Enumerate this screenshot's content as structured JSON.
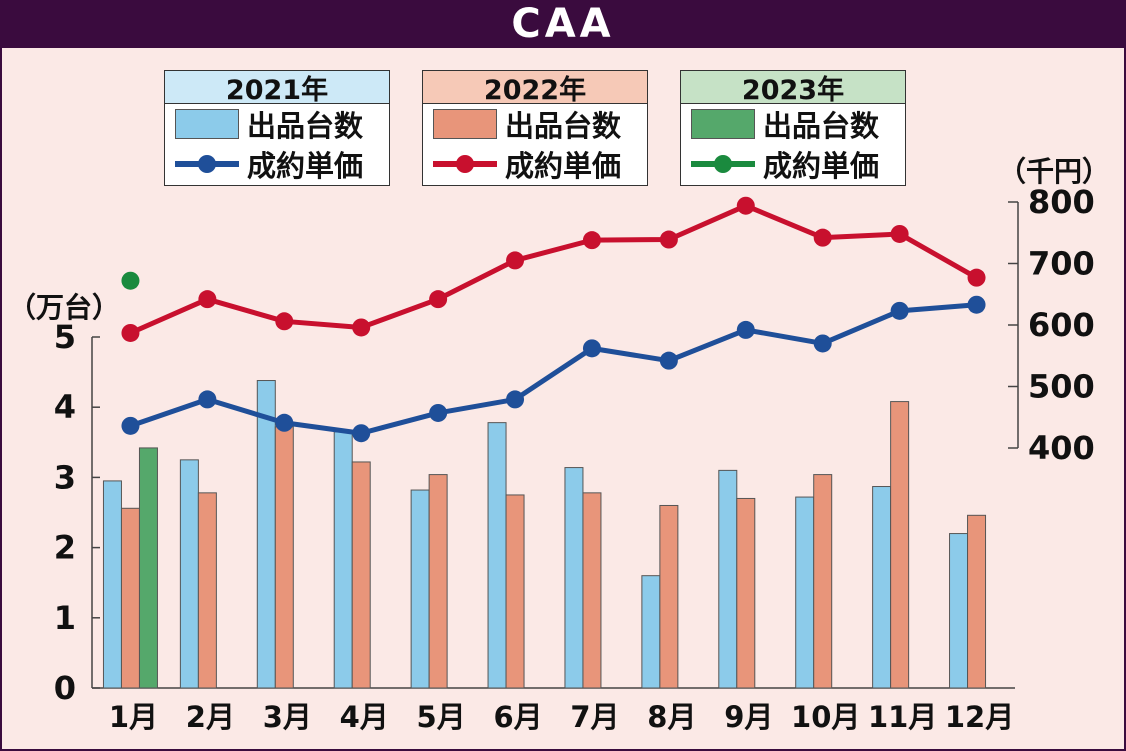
{
  "title": "CAA",
  "left_unit": "（万台）",
  "right_unit": "（千円）",
  "legends": [
    {
      "year": "2021年",
      "count_label": "出品台数",
      "price_label": "成約単価",
      "bar_color": "#8ccbea",
      "line_color": "#1f4f99",
      "header_bg": "#cde9f7"
    },
    {
      "year": "2022年",
      "count_label": "出品台数",
      "price_label": "成約単価",
      "bar_color": "#e8957a",
      "line_color": "#c8102e",
      "header_bg": "#f6c9b7"
    },
    {
      "year": "2023年",
      "count_label": "出品台数",
      "price_label": "成約単価",
      "bar_color": "#55a86b",
      "line_color": "#1a8a3e",
      "header_bg": "#c6e2c6"
    }
  ],
  "chart_data": {
    "type": "bar+line",
    "title": "CAA",
    "categories": [
      "1月",
      "2月",
      "3月",
      "4月",
      "5月",
      "6月",
      "7月",
      "8月",
      "9月",
      "10月",
      "11月",
      "12月"
    ],
    "left_axis": {
      "label": "（万台）",
      "ylim": [
        0,
        5
      ],
      "ticks": [
        0,
        1,
        2,
        3,
        4,
        5
      ]
    },
    "right_axis": {
      "label": "（千円）",
      "ylim": [
        400,
        800
      ],
      "ticks": [
        400,
        500,
        600,
        700,
        800
      ]
    },
    "bar_series": [
      {
        "name": "2021年 出品台数",
        "color": "#8ccbea",
        "values": [
          2.95,
          3.25,
          4.38,
          3.65,
          2.82,
          3.78,
          3.14,
          1.6,
          3.1,
          2.72,
          2.87,
          2.2
        ]
      },
      {
        "name": "2022年 出品台数",
        "color": "#e8957a",
        "values": [
          2.56,
          2.78,
          3.72,
          3.22,
          3.04,
          2.75,
          2.78,
          2.6,
          2.7,
          3.04,
          4.08,
          2.46
        ]
      },
      {
        "name": "2023年 出品台数",
        "color": "#55a86b",
        "values": [
          3.42,
          null,
          null,
          null,
          null,
          null,
          null,
          null,
          null,
          null,
          null,
          null
        ]
      }
    ],
    "line_series": [
      {
        "name": "2021年 成約単価",
        "color": "#1f4f99",
        "values": [
          436,
          479,
          441,
          424,
          457,
          479,
          562,
          542,
          592,
          570,
          623,
          633
        ]
      },
      {
        "name": "2022年 成約単価",
        "color": "#c8102e",
        "values": [
          587,
          642,
          606,
          596,
          642,
          705,
          738,
          739,
          794,
          742,
          748,
          677
        ]
      },
      {
        "name": "2023年 成約単価",
        "color": "#1a8a3e",
        "values": [
          672,
          null,
          null,
          null,
          null,
          null,
          null,
          null,
          null,
          null,
          null,
          null
        ]
      }
    ]
  }
}
